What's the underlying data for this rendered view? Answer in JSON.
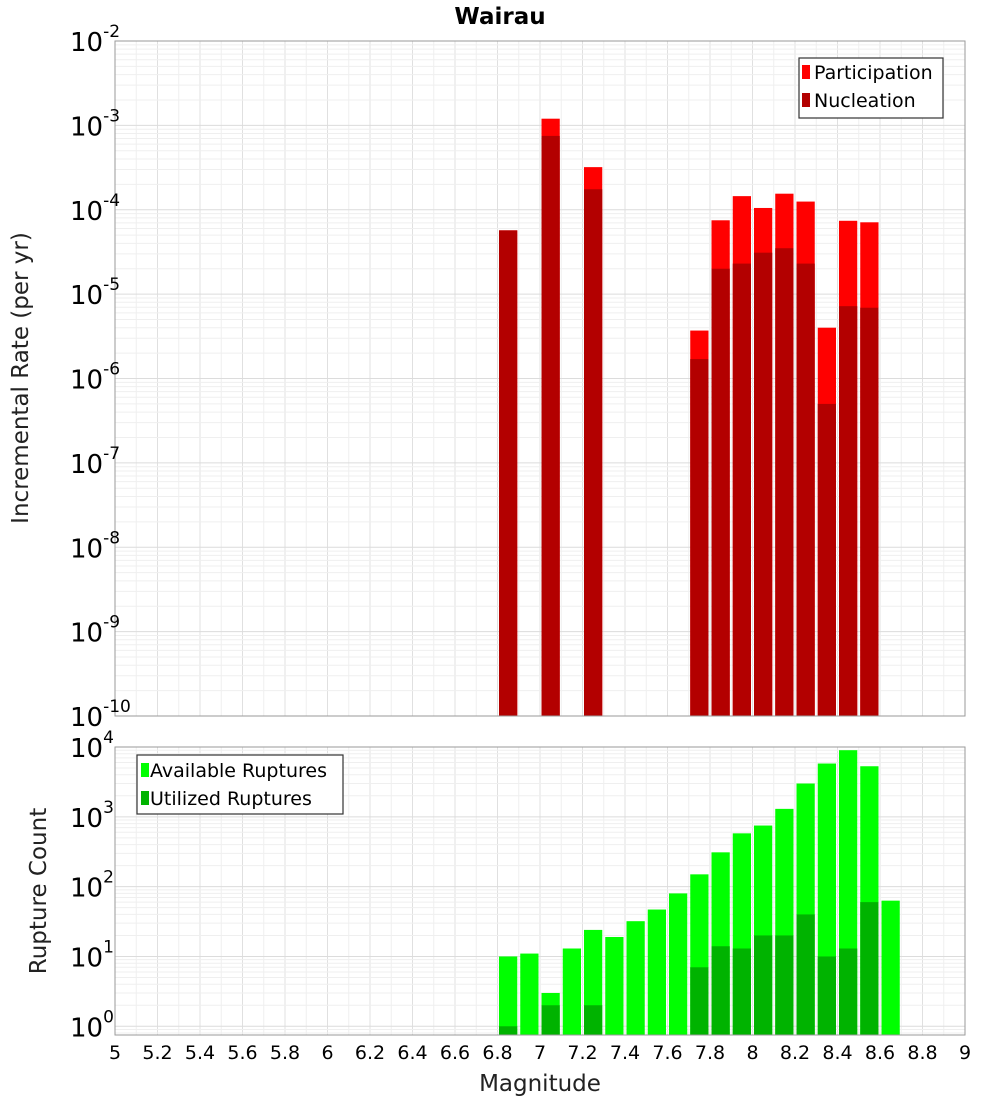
{
  "chart_data": [
    {
      "type": "bar",
      "title": "Wairau",
      "xlabel": "Magnitude",
      "ylabel": "Incremental Rate (per yr)",
      "yscale": "log",
      "ylim": [
        1e-10,
        0.01
      ],
      "xlim": [
        5,
        9
      ],
      "bin_width": 0.1,
      "grid": true,
      "legend_position": "top-right",
      "series": [
        {
          "name": "Participation",
          "color": "#ff0000",
          "x": [
            6.85,
            7.05,
            7.25,
            7.75,
            7.85,
            7.95,
            8.05,
            8.15,
            8.25,
            8.35,
            8.45,
            8.55
          ],
          "values": [
            5.7e-05,
            0.0012,
            0.00032,
            3.7e-06,
            7.5e-05,
            0.000145,
            0.000105,
            0.000155,
            0.000125,
            4e-06,
            7.4e-05,
            7.1e-05
          ]
        },
        {
          "name": "Nucleation",
          "color": "#b30000",
          "x": [
            6.85,
            7.05,
            7.25,
            7.75,
            7.85,
            7.95,
            8.05,
            8.15,
            8.25,
            8.35,
            8.45,
            8.55
          ],
          "values": [
            5.7e-05,
            0.00075,
            0.000175,
            1.7e-06,
            2e-05,
            2.3e-05,
            3.1e-05,
            3.5e-05,
            2.3e-05,
            5e-07,
            7.2e-06,
            6.9e-06
          ]
        }
      ]
    },
    {
      "type": "bar",
      "xlabel": "Magnitude",
      "ylabel": "Rupture Count",
      "yscale": "log",
      "ylim": [
        0.75,
        10000
      ],
      "xlim": [
        5,
        9
      ],
      "bin_width": 0.1,
      "grid": true,
      "legend_position": "top-left",
      "series": [
        {
          "name": "Available Ruptures",
          "color": "#00ff00",
          "x": [
            6.85,
            6.95,
            7.05,
            7.15,
            7.25,
            7.35,
            7.45,
            7.55,
            7.65,
            7.75,
            7.85,
            7.95,
            8.05,
            8.15,
            8.25,
            8.35,
            8.45,
            8.55,
            8.65
          ],
          "values": [
            10,
            11,
            3,
            13,
            24,
            19,
            32,
            47,
            80,
            150,
            310,
            580,
            750,
            1300,
            3000,
            5800,
            9000,
            5300,
            63
          ]
        },
        {
          "name": "Utilized Ruptures",
          "color": "#00b300",
          "x": [
            6.85,
            7.05,
            7.25,
            7.75,
            7.85,
            7.95,
            8.05,
            8.15,
            8.25,
            8.35,
            8.45,
            8.55
          ],
          "values": [
            1,
            2,
            2,
            7,
            14,
            13,
            20,
            20,
            40,
            10,
            13,
            60
          ]
        }
      ],
      "x_ticks": [
        "5",
        "5.2",
        "5.4",
        "5.6",
        "5.8",
        "6",
        "6.2",
        "6.4",
        "6.6",
        "6.8",
        "7",
        "7.2",
        "7.4",
        "7.6",
        "7.8",
        "8",
        "8.2",
        "8.4",
        "8.6",
        "8.8",
        "9"
      ]
    }
  ]
}
